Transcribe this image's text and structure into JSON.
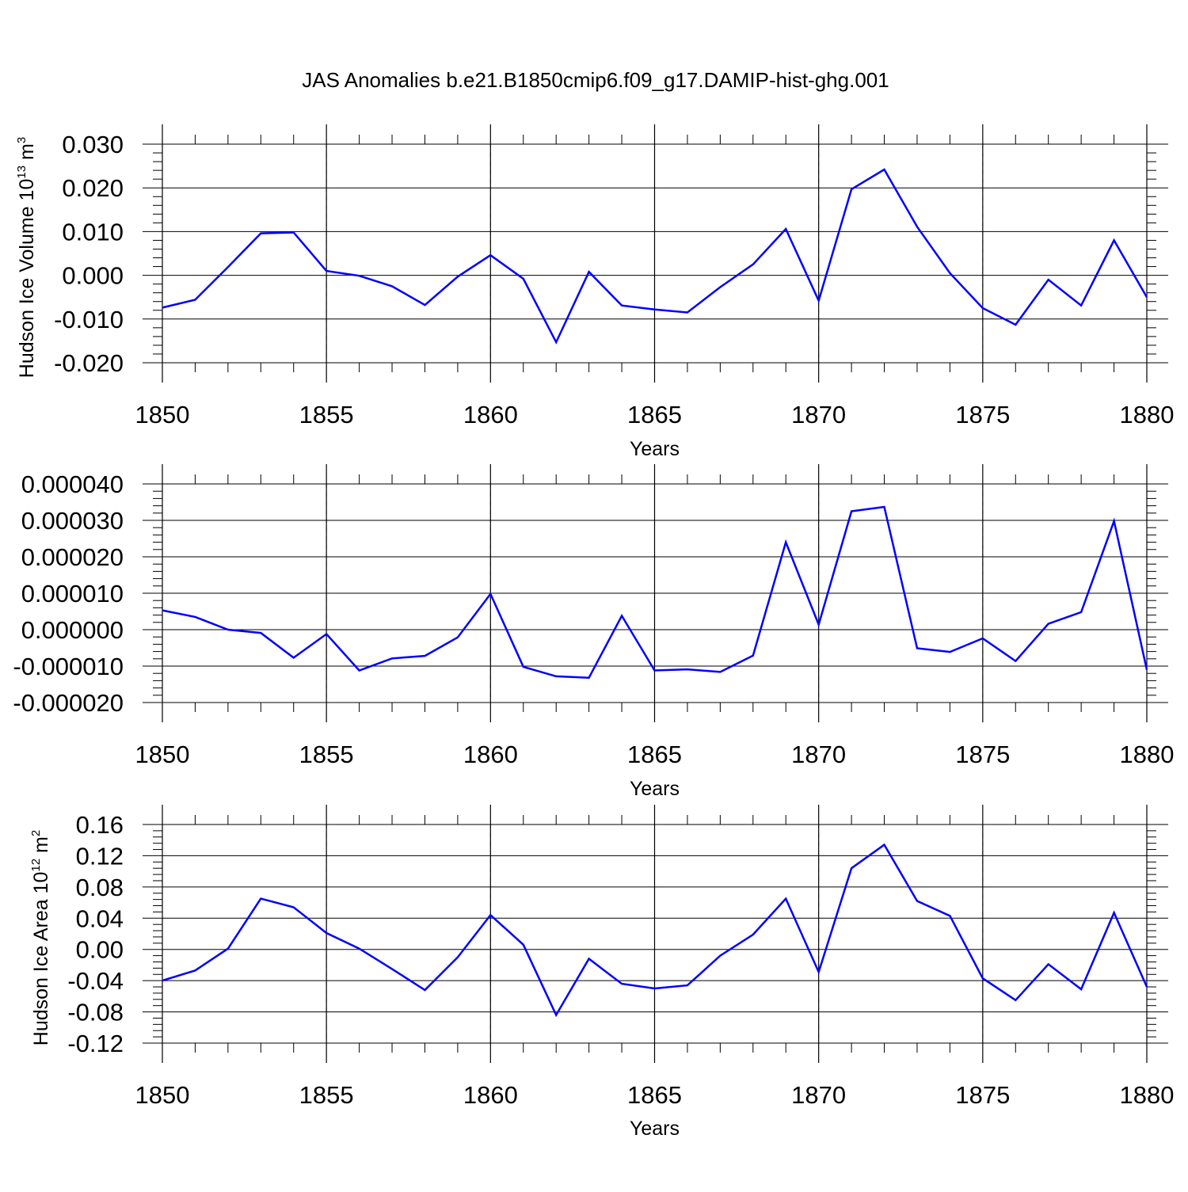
{
  "title": "JAS Anomalies b.e21.B1850cmip6.f09_g17.DAMIP-hist-ghg.001",
  "colors": {
    "line": "#0000ff",
    "axis": "#000000",
    "grid": "#888888"
  },
  "chart_data": [
    {
      "type": "line",
      "xlabel": "Years",
      "ylabel": "Hudson Ice Volume 10",
      "ylabel_sup": "13",
      "ylabel_suffix": " m",
      "ylabel_sup2": "3",
      "xlim": [
        1850,
        1880
      ],
      "ylim": [
        -0.02,
        0.03
      ],
      "xticks": [
        "1850",
        "1855",
        "1860",
        "1865",
        "1870",
        "1875",
        "1880"
      ],
      "yticks": [
        "-0.020",
        "-0.010",
        "0.000",
        "0.010",
        "0.020",
        "0.030"
      ],
      "ytick_values": [
        -0.02,
        -0.01,
        0.0,
        0.01,
        0.02,
        0.03
      ],
      "x": [
        1850,
        1851,
        1852,
        1853,
        1854,
        1855,
        1856,
        1857,
        1858,
        1859,
        1860,
        1861,
        1862,
        1863,
        1864,
        1865,
        1866,
        1867,
        1868,
        1869,
        1870,
        1871,
        1872,
        1873,
        1874,
        1875,
        1876,
        1877,
        1878,
        1879,
        1880
      ],
      "values": [
        -0.0074,
        -0.0056,
        0.0019,
        0.0096,
        0.0098,
        0.001,
        -0.0001,
        -0.0025,
        -0.0068,
        -0.0003,
        0.0046,
        -0.0008,
        -0.0153,
        0.0008,
        -0.0069,
        -0.0078,
        -0.0085,
        -0.0027,
        0.0025,
        0.0106,
        -0.0058,
        0.0197,
        0.0242,
        0.0111,
        0.0005,
        -0.0075,
        -0.0113,
        -0.001,
        -0.0069,
        0.008,
        -0.005
      ]
    },
    {
      "type": "line",
      "xlabel": "Years",
      "ylabel": "",
      "xlim": [
        1850,
        1880
      ],
      "ylim": [
        -2e-05,
        4e-05
      ],
      "xticks": [
        "1850",
        "1855",
        "1860",
        "1865",
        "1870",
        "1875",
        "1880"
      ],
      "yticks": [
        "-0.000020",
        "-0.000010",
        "0.000000",
        "0.000010",
        "0.000020",
        "0.000030",
        "0.000040"
      ],
      "ytick_values": [
        -2e-05,
        -1e-05,
        0.0,
        1e-05,
        2e-05,
        3e-05,
        4e-05
      ],
      "x": [
        1850,
        1851,
        1852,
        1853,
        1854,
        1855,
        1856,
        1857,
        1858,
        1859,
        1860,
        1861,
        1862,
        1863,
        1864,
        1865,
        1866,
        1867,
        1868,
        1869,
        1870,
        1871,
        1872,
        1873,
        1874,
        1875,
        1876,
        1877,
        1878,
        1879,
        1880
      ],
      "values": [
        5.3e-06,
        3.5e-06,
        0.0,
        -9e-07,
        -7.7e-06,
        -1.2e-06,
        -1.12e-05,
        -7.9e-06,
        -7.2e-06,
        -2.1e-06,
        9.8e-06,
        -1.02e-05,
        -1.28e-05,
        -1.32e-05,
        3.8e-06,
        -1.12e-05,
        -1.09e-05,
        -1.16e-05,
        -7.1e-06,
        2.4e-05,
        1.4e-06,
        3.25e-05,
        3.37e-05,
        -5.1e-06,
        -6.1e-06,
        -2.4e-06,
        -8.6e-06,
        1.6e-06,
        4.8e-06,
        2.98e-05,
        -1.1e-05
      ]
    },
    {
      "type": "line",
      "xlabel": "Years",
      "ylabel": "Hudson Ice Area 10",
      "ylabel_sup": "12",
      "ylabel_suffix": " m",
      "ylabel_sup2": "2",
      "xlim": [
        1850,
        1880
      ],
      "ylim": [
        -0.12,
        0.16
      ],
      "xticks": [
        "1850",
        "1855",
        "1860",
        "1865",
        "1870",
        "1875",
        "1880"
      ],
      "yticks": [
        "-0.12",
        "-0.08",
        "-0.04",
        "0.00",
        "0.04",
        "0.08",
        "0.12",
        "0.16"
      ],
      "ytick_values": [
        -0.12,
        -0.08,
        -0.04,
        0.0,
        0.04,
        0.08,
        0.12,
        0.16
      ],
      "x": [
        1850,
        1851,
        1852,
        1853,
        1854,
        1855,
        1856,
        1857,
        1858,
        1859,
        1860,
        1861,
        1862,
        1863,
        1864,
        1865,
        1866,
        1867,
        1868,
        1869,
        1870,
        1871,
        1872,
        1873,
        1874,
        1875,
        1876,
        1877,
        1878,
        1879,
        1880
      ],
      "values": [
        -0.04,
        -0.027,
        0.001,
        0.065,
        0.054,
        0.021,
        0.001,
        -0.025,
        -0.052,
        -0.01,
        0.044,
        0.006,
        -0.084,
        -0.012,
        -0.044,
        -0.05,
        -0.046,
        -0.008,
        0.019,
        0.065,
        -0.029,
        0.104,
        0.134,
        0.062,
        0.043,
        -0.037,
        -0.065,
        -0.019,
        -0.051,
        0.047,
        -0.048
      ]
    }
  ]
}
